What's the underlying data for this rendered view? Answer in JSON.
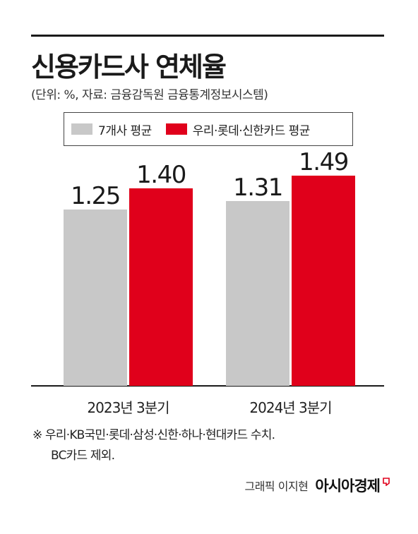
{
  "title": "신용카드사 연체율",
  "subtitle": "(단위: %, 자료: 금융감독원 금융통계정보시스템)",
  "footnote": {
    "line1": "※ 우리·KB국민·롯데·삼성·신한·하나·현대카드 수치.",
    "line2": "BC카드 제외."
  },
  "credit": {
    "byline": "그래픽 이지현",
    "brand": "아시아경제"
  },
  "colors": {
    "gray": "#c8c8c8",
    "red": "#e0001b",
    "axis": "#1a1a1a"
  },
  "chart_data": {
    "type": "bar",
    "title": "신용카드사 연체율",
    "ylabel": "",
    "categories": [
      "2023년 3분기",
      "2024년 3분기"
    ],
    "series": [
      {
        "name": "7개사 평균",
        "color": "#c8c8c8",
        "values": [
          1.25,
          1.31
        ]
      },
      {
        "name": "우리·롯데·신한카드 평균",
        "color": "#e0001b",
        "values": [
          1.4,
          1.49
        ]
      }
    ],
    "data_labels": [
      [
        "1.25",
        "1.31"
      ],
      [
        "1.40",
        "1.49"
      ]
    ],
    "ylim": [
      0,
      1.6
    ],
    "grid": false,
    "legend_position": "top"
  }
}
